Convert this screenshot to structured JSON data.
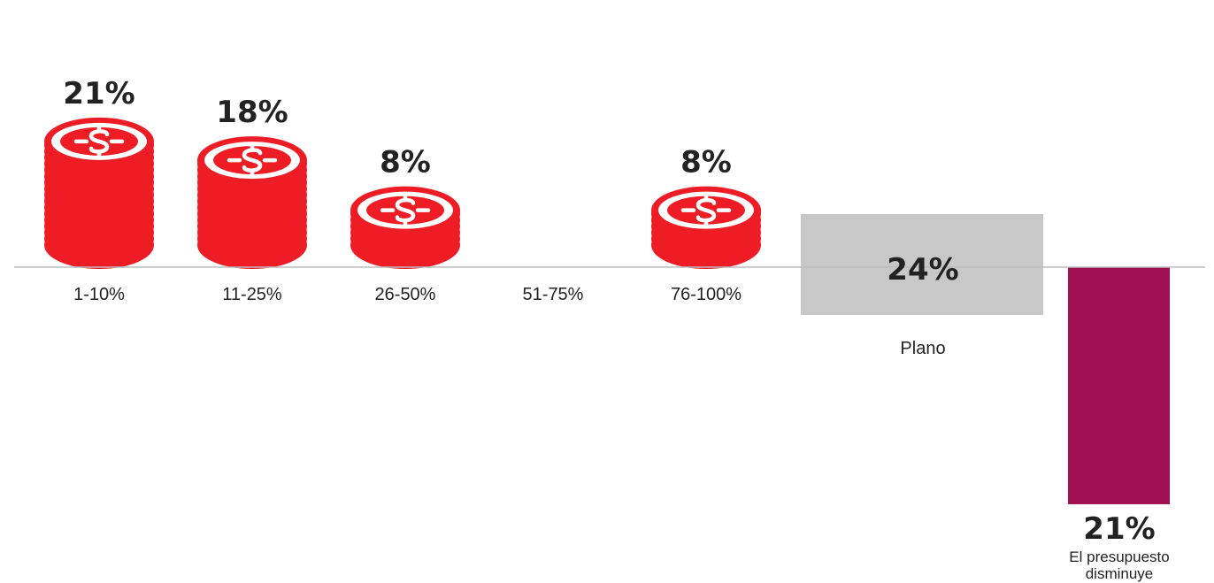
{
  "chart_data": {
    "type": "bar",
    "categories": [
      "1-10%",
      "11-25%",
      "26-50%",
      "51-75%",
      "76-100%",
      "Plano",
      "El presupuesto disminuye"
    ],
    "values": [
      21,
      18,
      8,
      null,
      8,
      24,
      21
    ],
    "value_labels": [
      "21%",
      "18%",
      "8%",
      "",
      "8%",
      "24%",
      "21%"
    ],
    "title": "",
    "xlabel": "",
    "ylabel": "",
    "colors": {
      "coin_red": "#EE1C25",
      "flat_gray": "#C8C8C8",
      "decrease_crimson": "#A00E52",
      "baseline": "#BBBBBB",
      "text": "#222222"
    },
    "icons": [
      "coin-stack-icon",
      "dollar-sign-icon"
    ]
  }
}
